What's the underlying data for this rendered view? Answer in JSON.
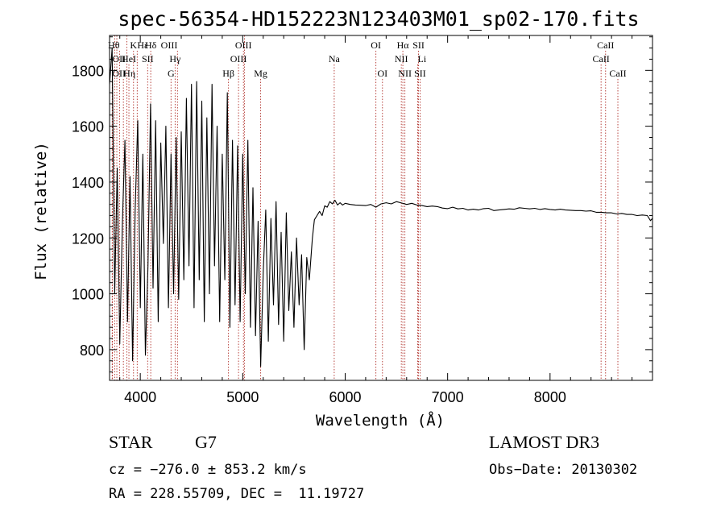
{
  "chart_data": {
    "type": "line",
    "title": "spec-56354-HD152223N123403M01_sp02-170.fits",
    "xlabel": "Wavelength (Å)",
    "ylabel": "Flux (relative)",
    "xlim": [
      3700,
      9000
    ],
    "ylim": [
      690,
      1925
    ],
    "xticks": [
      4000,
      5000,
      6000,
      7000,
      8000
    ],
    "yticks": [
      800,
      1000,
      1200,
      1400,
      1600,
      1800
    ],
    "grid": false,
    "series": [
      {
        "name": "flux",
        "points": [
          [
            3700,
            1750
          ],
          [
            3725,
            1880
          ],
          [
            3750,
            1000
          ],
          [
            3775,
            1450
          ],
          [
            3800,
            820
          ],
          [
            3825,
            1250
          ],
          [
            3850,
            1550
          ],
          [
            3875,
            900
          ],
          [
            3900,
            1420
          ],
          [
            3925,
            760
          ],
          [
            3950,
            1300
          ],
          [
            3975,
            1620
          ],
          [
            4000,
            950
          ],
          [
            4025,
            1500
          ],
          [
            4050,
            780
          ],
          [
            4075,
            1100
          ],
          [
            4100,
            1680
          ],
          [
            4125,
            1020
          ],
          [
            4150,
            1620
          ],
          [
            4175,
            900
          ],
          [
            4200,
            1540
          ],
          [
            4225,
            1180
          ],
          [
            4250,
            1600
          ],
          [
            4275,
            950
          ],
          [
            4300,
            1500
          ],
          [
            4325,
            1000
          ],
          [
            4350,
            1560
          ],
          [
            4375,
            980
          ],
          [
            4400,
            1580
          ],
          [
            4425,
            1050
          ],
          [
            4450,
            1700
          ],
          [
            4475,
            1100
          ],
          [
            4500,
            1750
          ],
          [
            4525,
            950
          ],
          [
            4550,
            1760
          ],
          [
            4575,
            1050
          ],
          [
            4600,
            1690
          ],
          [
            4625,
            900
          ],
          [
            4650,
            1630
          ],
          [
            4675,
            1000
          ],
          [
            4700,
            1750
          ],
          [
            4725,
            1100
          ],
          [
            4750,
            1600
          ],
          [
            4775,
            900
          ],
          [
            4800,
            1500
          ],
          [
            4825,
            1050
          ],
          [
            4850,
            1720
          ],
          [
            4875,
            880
          ],
          [
            4900,
            1550
          ],
          [
            4925,
            960
          ],
          [
            4950,
            1530
          ],
          [
            4975,
            900
          ],
          [
            5000,
            1500
          ],
          [
            5025,
            1000
          ],
          [
            5050,
            1550
          ],
          [
            5075,
            880
          ],
          [
            5100,
            1380
          ],
          [
            5125,
            850
          ],
          [
            5150,
            1260
          ],
          [
            5175,
            740
          ],
          [
            5200,
            1080
          ],
          [
            5225,
            1300
          ],
          [
            5250,
            830
          ],
          [
            5275,
            1270
          ],
          [
            5300,
            960
          ],
          [
            5325,
            1330
          ],
          [
            5350,
            890
          ],
          [
            5375,
            1220
          ],
          [
            5400,
            830
          ],
          [
            5425,
            1290
          ],
          [
            5450,
            940
          ],
          [
            5475,
            1150
          ],
          [
            5500,
            880
          ],
          [
            5525,
            1200
          ],
          [
            5550,
            960
          ],
          [
            5575,
            1140
          ],
          [
            5600,
            800
          ],
          [
            5625,
            1130
          ],
          [
            5650,
            1050
          ],
          [
            5680,
            1200
          ],
          [
            5700,
            1265
          ],
          [
            5725,
            1280
          ],
          [
            5750,
            1295
          ],
          [
            5775,
            1280
          ],
          [
            5800,
            1315
          ],
          [
            5825,
            1310
          ],
          [
            5850,
            1330
          ],
          [
            5875,
            1322
          ],
          [
            5900,
            1335
          ],
          [
            5925,
            1318
          ],
          [
            5950,
            1326
          ],
          [
            5975,
            1318
          ],
          [
            6000,
            1324
          ],
          [
            6050,
            1320
          ],
          [
            6100,
            1318
          ],
          [
            6150,
            1317
          ],
          [
            6200,
            1316
          ],
          [
            6250,
            1320
          ],
          [
            6300,
            1310
          ],
          [
            6350,
            1322
          ],
          [
            6400,
            1326
          ],
          [
            6450,
            1322
          ],
          [
            6500,
            1330
          ],
          [
            6550,
            1325
          ],
          [
            6600,
            1320
          ],
          [
            6650,
            1324
          ],
          [
            6700,
            1318
          ],
          [
            6750,
            1316
          ],
          [
            6800,
            1312
          ],
          [
            6850,
            1314
          ],
          [
            6900,
            1312
          ],
          [
            6950,
            1307
          ],
          [
            7000,
            1305
          ],
          [
            7050,
            1310
          ],
          [
            7100,
            1304
          ],
          [
            7150,
            1306
          ],
          [
            7200,
            1300
          ],
          [
            7250,
            1303
          ],
          [
            7300,
            1300
          ],
          [
            7350,
            1305
          ],
          [
            7400,
            1306
          ],
          [
            7450,
            1298
          ],
          [
            7500,
            1300
          ],
          [
            7550,
            1302
          ],
          [
            7600,
            1304
          ],
          [
            7650,
            1303
          ],
          [
            7700,
            1308
          ],
          [
            7750,
            1306
          ],
          [
            7800,
            1304
          ],
          [
            7850,
            1306
          ],
          [
            7900,
            1302
          ],
          [
            7950,
            1305
          ],
          [
            8000,
            1302
          ],
          [
            8050,
            1300
          ],
          [
            8100,
            1303
          ],
          [
            8150,
            1300
          ],
          [
            8200,
            1299
          ],
          [
            8250,
            1298
          ],
          [
            8300,
            1298
          ],
          [
            8350,
            1296
          ],
          [
            8400,
            1297
          ],
          [
            8450,
            1292
          ],
          [
            8500,
            1292
          ],
          [
            8550,
            1290
          ],
          [
            8600,
            1290
          ],
          [
            8650,
            1286
          ],
          [
            8700,
            1288
          ],
          [
            8750,
            1284
          ],
          [
            8800,
            1284
          ],
          [
            8850,
            1280
          ],
          [
            8900,
            1282
          ],
          [
            8950,
            1280
          ],
          [
            8980,
            1262
          ],
          [
            9000,
            1270
          ]
        ]
      }
    ],
    "lines": [
      {
        "label": "Hθ",
        "wave": 3798,
        "row": 0,
        "align": "end"
      },
      {
        "label": "K",
        "wave": 3934,
        "row": 0,
        "align": "middle"
      },
      {
        "label": "Hε",
        "wave": 3970,
        "row": 0,
        "align": "start"
      },
      {
        "label": "Hδ",
        "wave": 4102,
        "row": 0,
        "align": "middle"
      },
      {
        "label": "OIII",
        "wave": 4363,
        "row": 0,
        "align": "end"
      },
      {
        "label": "OIII",
        "wave": 5007,
        "row": 0,
        "align": "middle"
      },
      {
        "label": "OI",
        "wave": 6300,
        "row": 0,
        "align": "middle"
      },
      {
        "label": "Hα",
        "wave": 6563,
        "row": 0,
        "align": "middle"
      },
      {
        "label": "SII",
        "wave": 6716,
        "row": 0,
        "align": "middle"
      },
      {
        "label": "CaII",
        "wave": 8542,
        "row": 0,
        "align": "middle"
      },
      {
        "label": "OII",
        "wave": 3727,
        "row": 1,
        "align": "start"
      },
      {
        "label": "HeI",
        "wave": 3889,
        "row": 1,
        "align": "middle"
      },
      {
        "label": "SII",
        "wave": 4072,
        "row": 1,
        "align": "middle"
      },
      {
        "label": "Hγ",
        "wave": 4340,
        "row": 1,
        "align": "middle"
      },
      {
        "label": "OIII",
        "wave": 4959,
        "row": 1,
        "align": "middle"
      },
      {
        "label": "NII",
        "wave": 6548,
        "row": 1,
        "align": "middle"
      },
      {
        "label": "Li",
        "wave": 6708,
        "row": 1,
        "align": "start"
      },
      {
        "label": "CaII",
        "wave": 8498,
        "row": 1,
        "align": "middle"
      },
      {
        "label": "OII",
        "wave": 3726,
        "row": 2,
        "align": "start"
      },
      {
        "label": "Hη",
        "wave": 3835,
        "row": 2,
        "align": "start"
      },
      {
        "label": "G",
        "wave": 4300,
        "row": 2,
        "align": "middle"
      },
      {
        "label": "Hβ",
        "wave": 4861,
        "row": 2,
        "align": "middle"
      },
      {
        "label": "Mg",
        "wave": 5175,
        "row": 2,
        "align": "middle"
      },
      {
        "label": "Na",
        "wave": 5893,
        "row": 1,
        "align": "middle"
      },
      {
        "label": "OI",
        "wave": 6364,
        "row": 2,
        "align": "middle"
      },
      {
        "label": "NII",
        "wave": 6583,
        "row": 2,
        "align": "middle"
      },
      {
        "label": "SII",
        "wave": 6731,
        "row": 2,
        "align": "middle"
      },
      {
        "label": "CaII",
        "wave": 8662,
        "row": 2,
        "align": "middle"
      },
      {
        "label": "",
        "wave": 3750,
        "row": -1,
        "align": "middle"
      },
      {
        "label": "",
        "wave": 3771,
        "row": -1,
        "align": "middle"
      },
      {
        "label": "",
        "wave": 3869,
        "row": -1,
        "align": "middle"
      },
      {
        "label": "",
        "wave": 5018,
        "row": -1,
        "align": "middle"
      }
    ],
    "line_color": "#b0302a"
  },
  "info": {
    "object_type": "STAR",
    "subclass": "G7",
    "survey": "LAMOST DR3",
    "cz": "cz = −276.0 ± 853.2 km/s",
    "obs_date": "Obs−Date: 20130302",
    "radec": "RA = 228.55709, DEC =  11.19727"
  }
}
